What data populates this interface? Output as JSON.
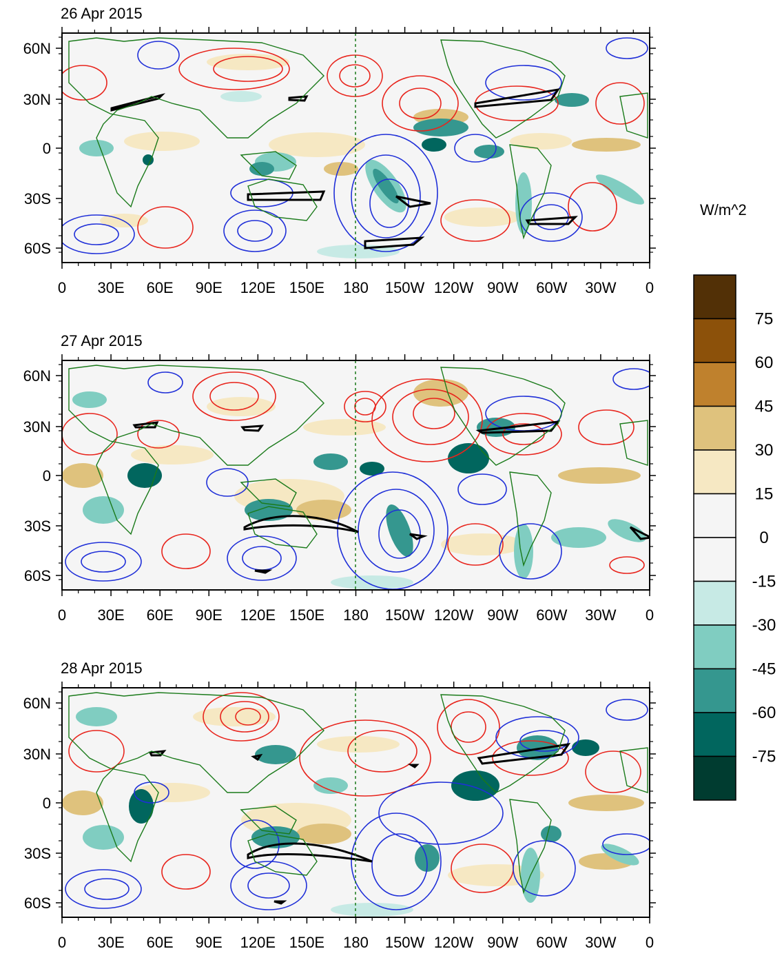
{
  "panels": [
    {
      "title": "26 Apr 2015"
    },
    {
      "title": "27 Apr 2015"
    },
    {
      "title": "28 Apr 2015"
    }
  ],
  "axes": {
    "x_ticks": [
      "0",
      "30E",
      "60E",
      "90E",
      "120E",
      "150E",
      "180",
      "150W",
      "120W",
      "90W",
      "60W",
      "30W",
      "0"
    ],
    "y_ticks": [
      "60N",
      "30N",
      "0",
      "30S",
      "60S"
    ]
  },
  "colorbar": {
    "unit": "W/m^2",
    "labels": [
      "75",
      "60",
      "45",
      "30",
      "15",
      "0",
      "-15",
      "-30",
      "-45",
      "-60",
      "-75"
    ],
    "colors": [
      "#523006",
      "#8c510a",
      "#bf812d",
      "#dfc27d",
      "#f6e8c3",
      "#f5f5f5",
      "#f5f5f5",
      "#c7eae5",
      "#80cdc1",
      "#35978f",
      "#01665e",
      "#003c30"
    ]
  },
  "colors": {
    "coast": "#1a7a1a",
    "positive_contour": "#e8241c",
    "negative_contour": "#1f2fd8",
    "highlight_contour": "#000000",
    "dateline": "#1a7a1a"
  }
}
